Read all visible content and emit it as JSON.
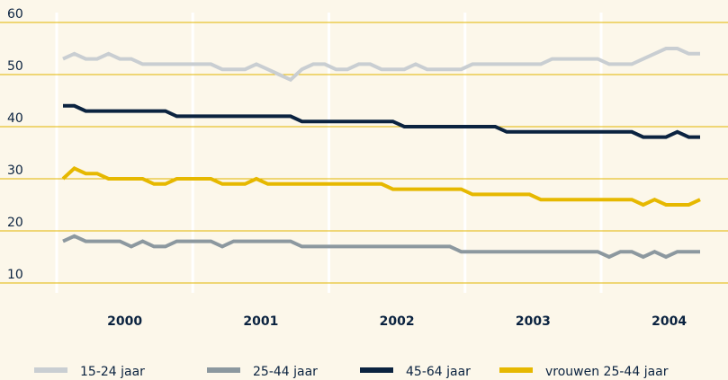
{
  "chart_data": {
    "type": "line",
    "year_labels": [
      "2000",
      "2001",
      "2002",
      "2003",
      "2004"
    ],
    "ylim": [
      10,
      60
    ],
    "yticks": [
      10,
      20,
      30,
      40,
      50,
      60
    ],
    "grid": true,
    "legend": "bottom",
    "series": [
      {
        "name": "15-24 jaar",
        "color": "#c9ced2",
        "values": [
          53,
          54,
          53,
          53,
          54,
          53,
          53,
          52,
          52,
          52,
          52,
          52,
          52,
          52,
          51,
          51,
          51,
          52,
          51,
          50,
          49,
          51,
          52,
          52,
          51,
          51,
          52,
          52,
          51,
          51,
          51,
          52,
          51,
          51,
          51,
          51,
          52,
          52,
          52,
          52,
          52,
          52,
          52,
          53,
          53,
          53,
          53,
          53,
          52,
          52,
          52,
          53,
          54,
          55,
          55,
          54,
          54
        ]
      },
      {
        "name": "25-44 jaar",
        "color": "#8c989f",
        "values": [
          18,
          19,
          18,
          18,
          18,
          18,
          17,
          18,
          17,
          17,
          18,
          18,
          18,
          18,
          17,
          18,
          18,
          18,
          18,
          18,
          18,
          17,
          17,
          17,
          17,
          17,
          17,
          17,
          17,
          17,
          17,
          17,
          17,
          17,
          17,
          16,
          16,
          16,
          16,
          16,
          16,
          16,
          16,
          16,
          16,
          16,
          16,
          16,
          15,
          16,
          16,
          15,
          16,
          15,
          16,
          16,
          16
        ]
      },
      {
        "name": "45-64 jaar",
        "color": "#0b2340",
        "values": [
          44,
          44,
          43,
          43,
          43,
          43,
          43,
          43,
          43,
          43,
          42,
          42,
          42,
          42,
          42,
          42,
          42,
          42,
          42,
          42,
          42,
          41,
          41,
          41,
          41,
          41,
          41,
          41,
          41,
          41,
          40,
          40,
          40,
          40,
          40,
          40,
          40,
          40,
          40,
          39,
          39,
          39,
          39,
          39,
          39,
          39,
          39,
          39,
          39,
          39,
          39,
          38,
          38,
          38,
          39,
          38,
          38
        ]
      },
      {
        "name": "vrouwen 25-44 jaar",
        "color": "#e6b800",
        "values": [
          30,
          32,
          31,
          31,
          30,
          30,
          30,
          30,
          29,
          29,
          30,
          30,
          30,
          30,
          29,
          29,
          29,
          30,
          29,
          29,
          29,
          29,
          29,
          29,
          29,
          29,
          29,
          29,
          29,
          28,
          28,
          28,
          28,
          28,
          28,
          28,
          27,
          27,
          27,
          27,
          27,
          27,
          26,
          26,
          26,
          26,
          26,
          26,
          26,
          26,
          26,
          25,
          26,
          25,
          25,
          25,
          26
        ]
      }
    ]
  }
}
